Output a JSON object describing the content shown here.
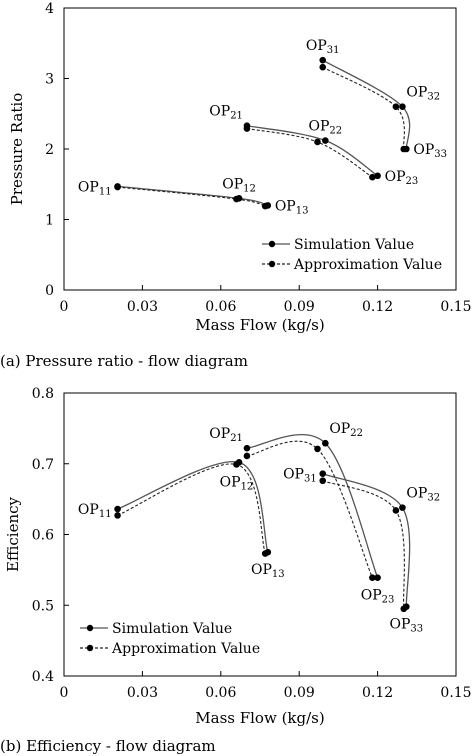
{
  "chart_data": [
    {
      "type": "line",
      "caption": "(a) Pressure ratio - flow diagram",
      "xlabel": "Mass Flow (kg/s)",
      "ylabel": "Pressure Ratio",
      "xlim": [
        0,
        0.15
      ],
      "ylim": [
        0,
        4
      ],
      "xticks": [
        "0",
        "0.03",
        "0.06",
        "0.09",
        "0.12",
        "0.15"
      ],
      "yticks": [
        "0",
        "1",
        "2",
        "3",
        "4"
      ],
      "grid": false,
      "legend_position": "bottom-right",
      "legend": [
        "Simulation Value",
        "Approximation Value"
      ],
      "series": [
        {
          "name": "Simulation Value",
          "style": "solid",
          "groups": [
            [
              [
                0.0205,
                1.47
              ],
              [
                0.067,
                1.3
              ],
              [
                0.078,
                1.2
              ]
            ],
            [
              [
                0.07,
                2.33
              ],
              [
                0.1,
                2.12
              ],
              [
                0.12,
                1.62
              ]
            ],
            [
              [
                0.099,
                3.26
              ],
              [
                0.1295,
                2.6
              ],
              [
                0.131,
                2.0
              ]
            ]
          ]
        },
        {
          "name": "Approximation Value",
          "style": "dashed",
          "groups": [
            [
              [
                0.0205,
                1.46
              ],
              [
                0.066,
                1.29
              ],
              [
                0.077,
                1.19
              ]
            ],
            [
              [
                0.07,
                2.29
              ],
              [
                0.097,
                2.1
              ],
              [
                0.118,
                1.6
              ]
            ],
            [
              [
                0.099,
                3.16
              ],
              [
                0.127,
                2.6
              ],
              [
                0.13,
                2.0
              ]
            ]
          ]
        }
      ],
      "annotations": [
        {
          "text": "OP",
          "sub": "11",
          "x": 0.0205,
          "y": 1.47,
          "pos": "left"
        },
        {
          "text": "OP",
          "sub": "12",
          "x": 0.067,
          "y": 1.3,
          "pos": "above"
        },
        {
          "text": "OP",
          "sub": "13",
          "x": 0.078,
          "y": 1.2,
          "pos": "right"
        },
        {
          "text": "OP",
          "sub": "21",
          "x": 0.07,
          "y": 2.33,
          "pos": "upper-left"
        },
        {
          "text": "OP",
          "sub": "22",
          "x": 0.1,
          "y": 2.12,
          "pos": "above"
        },
        {
          "text": "OP",
          "sub": "23",
          "x": 0.12,
          "y": 1.62,
          "pos": "right"
        },
        {
          "text": "OP",
          "sub": "31",
          "x": 0.099,
          "y": 3.26,
          "pos": "above"
        },
        {
          "text": "OP",
          "sub": "32",
          "x": 0.1295,
          "y": 2.6,
          "pos": "upper-right"
        },
        {
          "text": "OP",
          "sub": "33",
          "x": 0.131,
          "y": 2.0,
          "pos": "right"
        }
      ]
    },
    {
      "type": "line",
      "caption": "(b) Efficiency - flow diagram",
      "xlabel": "Mass Flow (kg/s)",
      "ylabel": "Efficiency",
      "xlim": [
        0,
        0.15
      ],
      "ylim": [
        0.4,
        0.8
      ],
      "xticks": [
        "0",
        "0.03",
        "0.06",
        "0.09",
        "0.12",
        "0.15"
      ],
      "yticks": [
        "0.4",
        "0.5",
        "0.6",
        "0.7",
        "0.8"
      ],
      "grid": false,
      "legend_position": "bottom-left",
      "legend": [
        "Simulation Value",
        "Approximation Value"
      ],
      "series": [
        {
          "name": "Simulation Value",
          "style": "solid",
          "groups": [
            [
              [
                0.0205,
                0.636
              ],
              [
                0.067,
                0.702
              ],
              [
                0.078,
                0.575
              ]
            ],
            [
              [
                0.07,
                0.722
              ],
              [
                0.1,
                0.729
              ],
              [
                0.12,
                0.539
              ]
            ],
            [
              [
                0.099,
                0.686
              ],
              [
                0.1295,
                0.638
              ],
              [
                0.131,
                0.498
              ]
            ]
          ]
        },
        {
          "name": "Approximation Value",
          "style": "dashed",
          "groups": [
            [
              [
                0.0205,
                0.627
              ],
              [
                0.066,
                0.699
              ],
              [
                0.077,
                0.573
              ]
            ],
            [
              [
                0.07,
                0.711
              ],
              [
                0.097,
                0.721
              ],
              [
                0.118,
                0.539
              ]
            ],
            [
              [
                0.099,
                0.676
              ],
              [
                0.127,
                0.634
              ],
              [
                0.13,
                0.495
              ]
            ]
          ]
        }
      ],
      "annotations": [
        {
          "text": "OP",
          "sub": "11",
          "x": 0.0205,
          "y": 0.636,
          "pos": "left"
        },
        {
          "text": "OP",
          "sub": "12",
          "x": 0.066,
          "y": 0.699,
          "pos": "below"
        },
        {
          "text": "OP",
          "sub": "13",
          "x": 0.078,
          "y": 0.575,
          "pos": "below"
        },
        {
          "text": "OP",
          "sub": "21",
          "x": 0.07,
          "y": 0.722,
          "pos": "upper-left"
        },
        {
          "text": "OP",
          "sub": "22",
          "x": 0.1,
          "y": 0.729,
          "pos": "upper-right"
        },
        {
          "text": "OP",
          "sub": "23",
          "x": 0.12,
          "y": 0.539,
          "pos": "below"
        },
        {
          "text": "OP",
          "sub": "31",
          "x": 0.099,
          "y": 0.686,
          "pos": "left"
        },
        {
          "text": "OP",
          "sub": "32",
          "x": 0.1295,
          "y": 0.638,
          "pos": "upper-right"
        },
        {
          "text": "OP",
          "sub": "33",
          "x": 0.131,
          "y": 0.498,
          "pos": "below"
        }
      ]
    }
  ]
}
